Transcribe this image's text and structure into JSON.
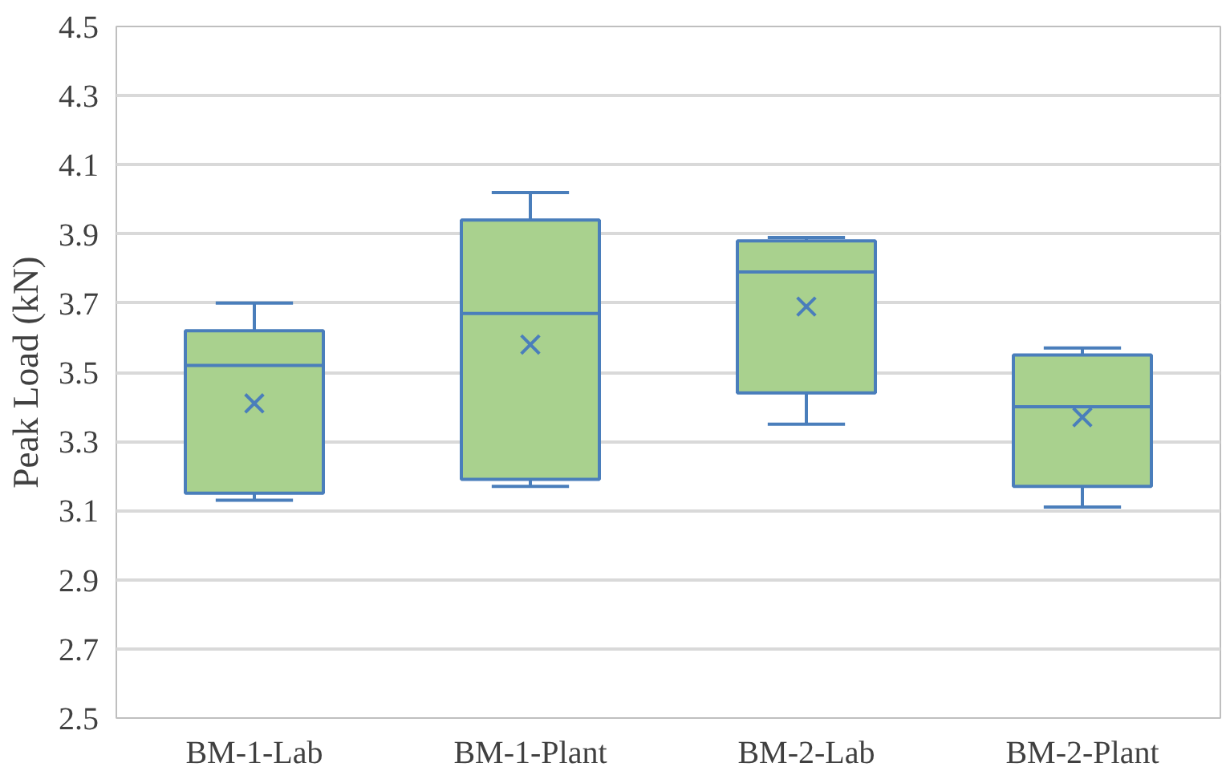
{
  "chart_data": {
    "type": "box",
    "ylabel": "Peak Load (kN)",
    "categories": [
      "BM-1-Lab",
      "BM-1-Plant",
      "BM-2-Lab",
      "BM-2-Plant"
    ],
    "boxes": [
      {
        "low": 3.13,
        "q1": 3.15,
        "median": 3.52,
        "q3": 3.62,
        "high": 3.7,
        "mean": 3.41
      },
      {
        "low": 3.17,
        "q1": 3.19,
        "median": 3.67,
        "q3": 3.94,
        "high": 4.02,
        "mean": 3.58
      },
      {
        "low": 3.35,
        "q1": 3.44,
        "median": 3.79,
        "q3": 3.88,
        "high": 3.89,
        "mean": 3.69
      },
      {
        "low": 3.11,
        "q1": 3.17,
        "median": 3.4,
        "q3": 3.55,
        "high": 3.57,
        "mean": 3.37
      }
    ],
    "color": "#a9d18e",
    "ylim": [
      2.5,
      4.5
    ],
    "yticks": [
      {
        "value": 2.5,
        "label": "2.5"
      },
      {
        "value": 2.7,
        "label": "2.7"
      },
      {
        "value": 2.9,
        "label": "2.9"
      },
      {
        "value": 3.1,
        "label": "3.1"
      },
      {
        "value": 3.3,
        "label": "3.3"
      },
      {
        "value": 3.5,
        "label": "3.5"
      },
      {
        "value": 3.7,
        "label": "3.7"
      },
      {
        "value": 3.9,
        "label": "3.9"
      },
      {
        "value": 4.1,
        "label": "4.1"
      },
      {
        "value": 4.3,
        "label": "4.3"
      },
      {
        "value": 4.5,
        "label": "4.5"
      }
    ],
    "grid": "y"
  }
}
